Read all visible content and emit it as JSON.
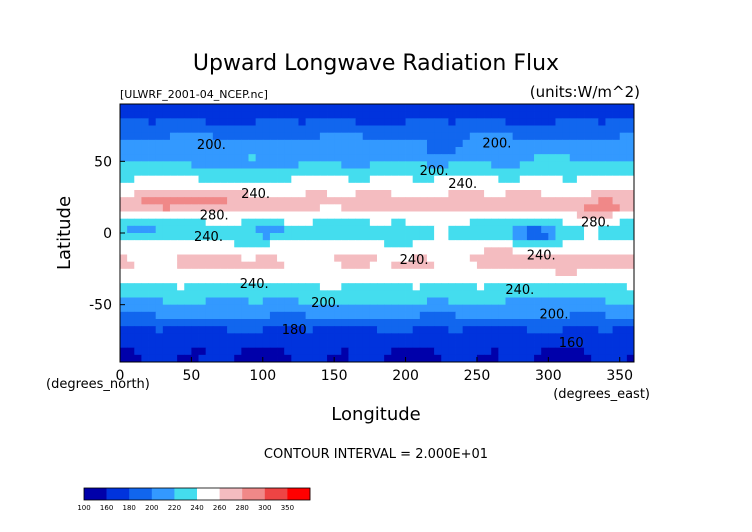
{
  "chart_data": {
    "type": "heatmap",
    "title": "Upward Longwave Radiation Flux",
    "source_label": "[ULWRF_2001-04_NCEP.nc]",
    "units_label": "(units:W/m^2)",
    "xlabel": "Longitude",
    "ylabel": "Latitude",
    "x_unit_label": "(degrees_east)",
    "y_unit_label": "(degrees_north)",
    "xlim": [
      0,
      360
    ],
    "ylim": [
      -90,
      90
    ],
    "x_ticks": [
      "0",
      "50",
      "100",
      "150",
      "200",
      "250",
      "300",
      "350"
    ],
    "y_ticks": [
      "50",
      "0",
      "-50"
    ],
    "contour_interval_text": "CONTOUR INTERVAL = 2.000E+01",
    "contour_labels": [
      {
        "text": "200.",
        "lon": 64,
        "lat": 62
      },
      {
        "text": "200.",
        "lon": 264,
        "lat": 63
      },
      {
        "text": "200.",
        "lon": 220,
        "lat": 44
      },
      {
        "text": "240.",
        "lon": 95,
        "lat": 28
      },
      {
        "text": "240.",
        "lon": 240,
        "lat": 35
      },
      {
        "text": "280.",
        "lon": 66,
        "lat": 13
      },
      {
        "text": "280.",
        "lon": 333,
        "lat": 8
      },
      {
        "text": "240.",
        "lon": 62,
        "lat": -2
      },
      {
        "text": "240.",
        "lon": 206,
        "lat": -18
      },
      {
        "text": "240.",
        "lon": 295,
        "lat": -15
      },
      {
        "text": "240.",
        "lon": 94,
        "lat": -35
      },
      {
        "text": "240.",
        "lon": 280,
        "lat": -39
      },
      {
        "text": "200.",
        "lon": 144,
        "lat": -48
      },
      {
        "text": "200.",
        "lon": 304,
        "lat": -56
      },
      {
        "text": "180",
        "lon": 122,
        "lat": -67
      },
      {
        "text": "160",
        "lon": 316,
        "lat": -76
      }
    ],
    "latitude_profile": [
      {
        "lat": 90,
        "value": 165
      },
      {
        "lat": 80,
        "value": 175
      },
      {
        "lat": 70,
        "value": 195
      },
      {
        "lat": 60,
        "value": 210
      },
      {
        "lat": 50,
        "value": 220
      },
      {
        "lat": 40,
        "value": 238
      },
      {
        "lat": 30,
        "value": 255
      },
      {
        "lat": 20,
        "value": 270
      },
      {
        "lat": 10,
        "value": 245
      },
      {
        "lat": 0,
        "value": 232
      },
      {
        "lat": -10,
        "value": 248
      },
      {
        "lat": -20,
        "value": 262
      },
      {
        "lat": -30,
        "value": 250
      },
      {
        "lat": -40,
        "value": 232
      },
      {
        "lat": -50,
        "value": 215
      },
      {
        "lat": -60,
        "value": 198
      },
      {
        "lat": -70,
        "value": 172
      },
      {
        "lat": -80,
        "value": 162
      },
      {
        "lat": -90,
        "value": 158
      }
    ],
    "anomalies": [
      {
        "lon": 40,
        "lat": 22,
        "rlon": 30,
        "rlat": 7,
        "delta": 30
      },
      {
        "lon": 340,
        "lat": 18,
        "rlon": 25,
        "rlat": 6,
        "delta": 25
      },
      {
        "lon": 245,
        "lat": 18,
        "rlon": 35,
        "rlat": 6,
        "delta": 10
      },
      {
        "lon": 290,
        "lat": 0,
        "rlon": 14,
        "rlat": 8,
        "delta": -45
      },
      {
        "lon": 105,
        "lat": 2,
        "rlon": 12,
        "rlat": 6,
        "delta": -30
      },
      {
        "lon": 15,
        "lat": 2,
        "rlon": 18,
        "rlat": 6,
        "delta": -25
      },
      {
        "lon": 165,
        "lat": 0,
        "rlon": 25,
        "rlat": 6,
        "delta": -12
      },
      {
        "lon": 95,
        "lat": 45,
        "rlon": 30,
        "rlat": 6,
        "delta": -15
      },
      {
        "lon": 220,
        "lat": 55,
        "rlon": 40,
        "rlat": 8,
        "delta": -12
      },
      {
        "lon": 330,
        "lat": -20,
        "rlon": 30,
        "rlat": 6,
        "delta": 15
      },
      {
        "lon": 265,
        "lat": -18,
        "rlon": 22,
        "rlat": 6,
        "delta": 15
      },
      {
        "lon": 60,
        "lat": -22,
        "rlon": 30,
        "rlat": 6,
        "delta": 8
      },
      {
        "lon": 175,
        "lat": -45,
        "rlon": 60,
        "rlat": 5,
        "delta": 8
      }
    ],
    "colorbar": {
      "levels": [
        "100",
        "160",
        "180",
        "200",
        "220",
        "240",
        "260",
        "280",
        "300",
        "350"
      ],
      "colors": [
        "#0000aa",
        "#0033dd",
        "#1166ee",
        "#3399ff",
        "#44ddee",
        "#ffffff",
        "#f4bcc0",
        "#f08888",
        "#ee4444",
        "#ff0000"
      ]
    }
  }
}
